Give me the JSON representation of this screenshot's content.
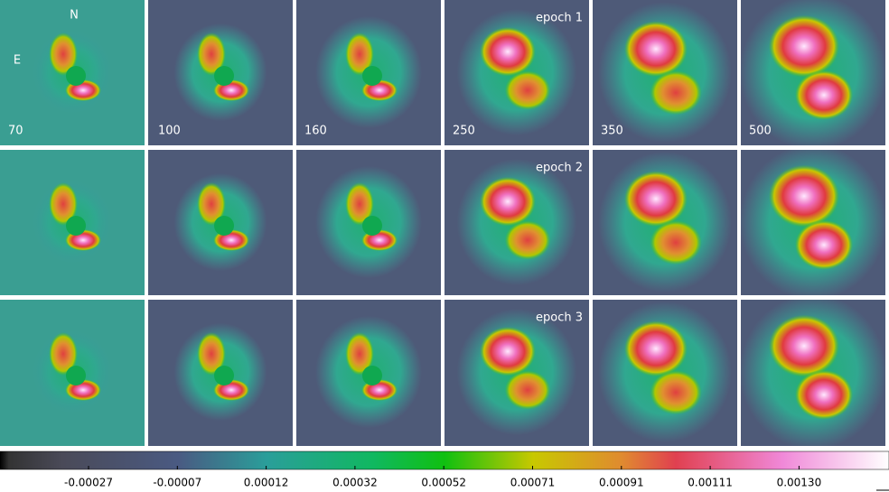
{
  "labels": {
    "north": "N",
    "east": "E"
  },
  "columns": [
    "70",
    "100",
    "160",
    "250",
    "350",
    "500"
  ],
  "epochs": [
    "epoch 1",
    "epoch 2",
    "epoch 3"
  ],
  "colorbar": {
    "ticks": [
      "-0.00027",
      "-0.00007",
      "0.00012",
      "0.00032",
      "0.00052",
      "0.00071",
      "0.00091",
      "0.00111",
      "0.00130"
    ]
  }
}
